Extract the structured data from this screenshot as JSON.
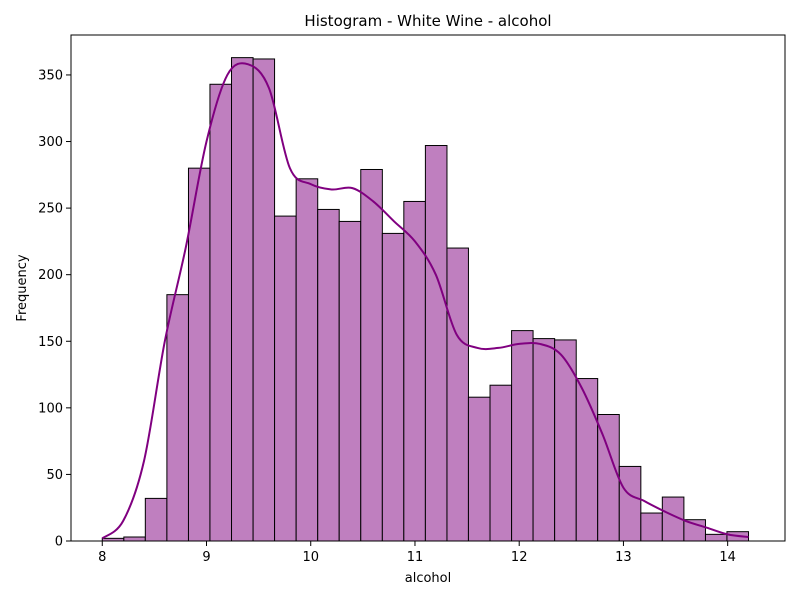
{
  "chart_data": {
    "type": "bar",
    "title": "Histogram - White Wine - alcohol",
    "xlabel": "alcohol",
    "ylabel": "Frequency",
    "xlim": [
      7.7,
      14.55
    ],
    "ylim": [
      0,
      380
    ],
    "x_ticks": [
      "8",
      "9",
      "10",
      "11",
      "12",
      "13",
      "14"
    ],
    "y_ticks": [
      "0",
      "50",
      "100",
      "150",
      "200",
      "250",
      "300",
      "350"
    ],
    "bin_edges": [
      8.0,
      8.207,
      8.413,
      8.62,
      8.827,
      9.033,
      9.24,
      9.447,
      9.653,
      9.86,
      10.067,
      10.273,
      10.48,
      10.687,
      10.893,
      11.1,
      11.307,
      11.513,
      11.72,
      11.927,
      12.133,
      12.34,
      12.547,
      12.753,
      12.96,
      13.167,
      13.373,
      13.58,
      13.787,
      13.993,
      14.2
    ],
    "values": [
      2,
      3,
      32,
      185,
      280,
      343,
      363,
      362,
      244,
      272,
      249,
      240,
      279,
      231,
      255,
      297,
      220,
      108,
      117,
      158,
      152,
      151,
      122,
      95,
      56,
      21,
      33,
      16,
      5,
      7
    ],
    "kde": {
      "x": [
        8.0,
        8.2,
        8.4,
        8.6,
        8.8,
        9.0,
        9.2,
        9.4,
        9.6,
        9.8,
        10.0,
        10.2,
        10.4,
        10.6,
        10.8,
        11.0,
        11.2,
        11.4,
        11.6,
        11.8,
        12.0,
        12.2,
        12.4,
        12.6,
        12.8,
        13.0,
        13.2,
        13.4,
        13.6,
        13.8,
        14.0,
        14.2
      ],
      "y": [
        2,
        15,
        60,
        150,
        220,
        300,
        350,
        358,
        340,
        280,
        268,
        264,
        265,
        255,
        240,
        225,
        200,
        155,
        145,
        145,
        148,
        148,
        140,
        115,
        80,
        40,
        30,
        22,
        15,
        10,
        5,
        3
      ]
    },
    "colors": {
      "bar_fill": "#bf7fbf",
      "bar_edge": "#000000",
      "kde_line": "#800080"
    }
  }
}
